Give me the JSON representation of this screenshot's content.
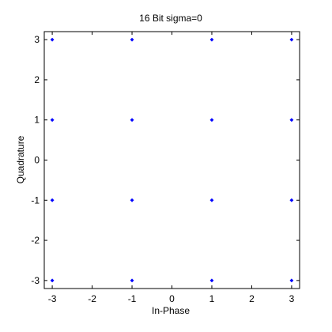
{
  "chart_data": {
    "type": "scatter",
    "title": "16 Bit sigma=0",
    "xlabel": "In-Phase",
    "ylabel": "Quadrature",
    "xlim": [
      -3.2,
      3.2
    ],
    "ylim": [
      -3.2,
      3.2
    ],
    "xticks": [
      -3,
      -2,
      -1,
      0,
      1,
      2,
      3
    ],
    "yticks": [
      -3,
      -2,
      -1,
      0,
      1,
      2,
      3
    ],
    "grid": false,
    "points": [
      {
        "x": -3,
        "y": 3
      },
      {
        "x": -1,
        "y": 3
      },
      {
        "x": 1,
        "y": 3
      },
      {
        "x": 3,
        "y": 3
      },
      {
        "x": -3,
        "y": 1
      },
      {
        "x": -1,
        "y": 1
      },
      {
        "x": 1,
        "y": 1
      },
      {
        "x": 3,
        "y": 1
      },
      {
        "x": -3,
        "y": -1
      },
      {
        "x": -1,
        "y": -1
      },
      {
        "x": 1,
        "y": -1
      },
      {
        "x": 3,
        "y": -1
      },
      {
        "x": -3,
        "y": -3
      },
      {
        "x": -1,
        "y": -3
      },
      {
        "x": 1,
        "y": -3
      },
      {
        "x": 3,
        "y": -3
      }
    ],
    "marker_color": "#0000ff"
  }
}
